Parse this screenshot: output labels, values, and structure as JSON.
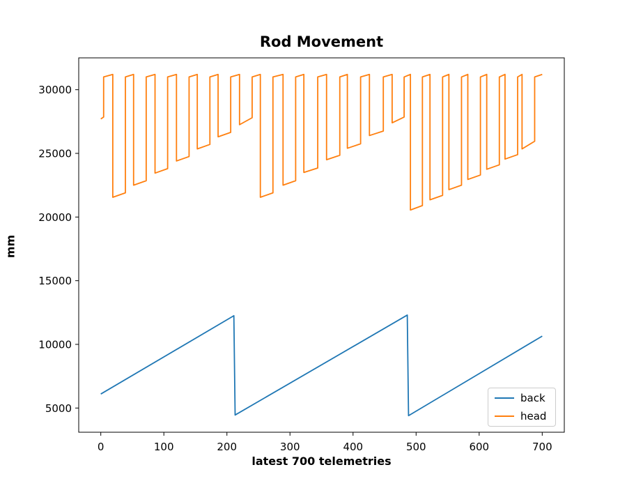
{
  "figure": {
    "title": "Rod Movement",
    "xlabel": "latest 700 telemetries",
    "ylabel": "mm",
    "background_color": "#ffffff"
  },
  "legend": {
    "position": "lower right",
    "border_color": "#cccccc",
    "entries": [
      {
        "label": "back",
        "color": "#1f77b4"
      },
      {
        "label": "head",
        "color": "#ff7f0e"
      }
    ]
  },
  "chart_data": {
    "type": "line",
    "title": "Rod Movement",
    "xlabel": "latest 700 telemetries",
    "ylabel": "mm",
    "xlim": [
      -35,
      735
    ],
    "ylim": [
      3100,
      32500
    ],
    "xticks": [
      0,
      100,
      200,
      300,
      400,
      500,
      600,
      700
    ],
    "yticks": [
      5000,
      10000,
      15000,
      20000,
      25000,
      30000
    ],
    "grid": false,
    "legend_position": "lower right",
    "series": [
      {
        "name": "back",
        "color": "#1f77b4",
        "points": [
          [
            0,
            6100
          ],
          [
            211,
            12250
          ],
          [
            213,
            4450
          ],
          [
            486,
            12300
          ],
          [
            488,
            4400
          ],
          [
            700,
            10650
          ]
        ]
      },
      {
        "name": "head",
        "color": "#ff7f0e",
        "points": [
          [
            0,
            27700
          ],
          [
            4.5,
            27850
          ],
          [
            4.5,
            31000
          ],
          [
            19,
            31200
          ],
          [
            19,
            21550
          ],
          [
            39,
            21900
          ],
          [
            39,
            31000
          ],
          [
            52,
            31200
          ],
          [
            52,
            22500
          ],
          [
            72,
            22850
          ],
          [
            72,
            31000
          ],
          [
            86,
            31200
          ],
          [
            86,
            23450
          ],
          [
            106,
            23800
          ],
          [
            106,
            31000
          ],
          [
            120,
            31200
          ],
          [
            120,
            24400
          ],
          [
            140,
            24750
          ],
          [
            140,
            31000
          ],
          [
            153,
            31200
          ],
          [
            153,
            25350
          ],
          [
            173,
            25700
          ],
          [
            173,
            31000
          ],
          [
            186,
            31200
          ],
          [
            186,
            26300
          ],
          [
            206,
            26650
          ],
          [
            206,
            31000
          ],
          [
            220,
            31200
          ],
          [
            220,
            27250
          ],
          [
            240,
            27800
          ],
          [
            240,
            31000
          ],
          [
            253,
            31200
          ],
          [
            253,
            21550
          ],
          [
            273,
            21900
          ],
          [
            273,
            31000
          ],
          [
            289,
            31200
          ],
          [
            289,
            22500
          ],
          [
            309,
            22850
          ],
          [
            309,
            31000
          ],
          [
            322,
            31200
          ],
          [
            322,
            23500
          ],
          [
            344,
            23850
          ],
          [
            344,
            31000
          ],
          [
            358,
            31200
          ],
          [
            358,
            24500
          ],
          [
            379,
            24850
          ],
          [
            379,
            31000
          ],
          [
            391,
            31200
          ],
          [
            391,
            25400
          ],
          [
            412,
            25750
          ],
          [
            412,
            31000
          ],
          [
            426,
            31200
          ],
          [
            426,
            26400
          ],
          [
            448,
            26750
          ],
          [
            448,
            31000
          ],
          [
            462,
            31200
          ],
          [
            462,
            27400
          ],
          [
            481,
            27850
          ],
          [
            481,
            31000
          ],
          [
            491,
            31200
          ],
          [
            491,
            20550
          ],
          [
            510,
            20900
          ],
          [
            510,
            31000
          ],
          [
            522,
            31200
          ],
          [
            522,
            21350
          ],
          [
            542,
            21700
          ],
          [
            542,
            31000
          ],
          [
            552,
            31200
          ],
          [
            552,
            22150
          ],
          [
            572,
            22500
          ],
          [
            572,
            31000
          ],
          [
            582,
            31200
          ],
          [
            582,
            22950
          ],
          [
            602,
            23300
          ],
          [
            602,
            31000
          ],
          [
            612,
            31200
          ],
          [
            612,
            23750
          ],
          [
            632,
            24100
          ],
          [
            632,
            31000
          ],
          [
            641,
            31200
          ],
          [
            641,
            24550
          ],
          [
            661,
            24900
          ],
          [
            661,
            31000
          ],
          [
            668,
            31200
          ],
          [
            668,
            25350
          ],
          [
            688,
            25950
          ],
          [
            688,
            31000
          ],
          [
            700,
            31200
          ]
        ]
      }
    ]
  }
}
